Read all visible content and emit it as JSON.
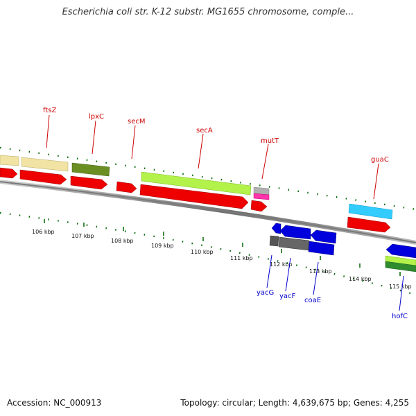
{
  "title": "Escherichia coli str. K-12 substr. MG1655 chromosome, comple...",
  "footer": {
    "accession": "Accession: NC_000913",
    "summary": "Topology: circular; Length: 4,639,675 bp; Genes: 4,255"
  },
  "colors": {
    "forward_label": "#cc0000",
    "reverse_label": "#0000cc",
    "cds_red": "#ee0000",
    "cds_blue": "#0000dd",
    "backbone": "#777777",
    "tick_green": "#006600"
  },
  "scale_labels": [
    "106 kbp",
    "107 kbp",
    "108 kbp",
    "109 kbp",
    "110 kbp",
    "111 kbp",
    "112 kbp",
    "113 kbp",
    "114 kbp",
    "115 kbp"
  ],
  "forward_genes": [
    "ftsZ",
    "lpxC",
    "secM",
    "secA",
    "mutT",
    "guaC"
  ],
  "reverse_genes": [
    "yacG",
    "yacF",
    "coaE",
    "hofC"
  ]
}
